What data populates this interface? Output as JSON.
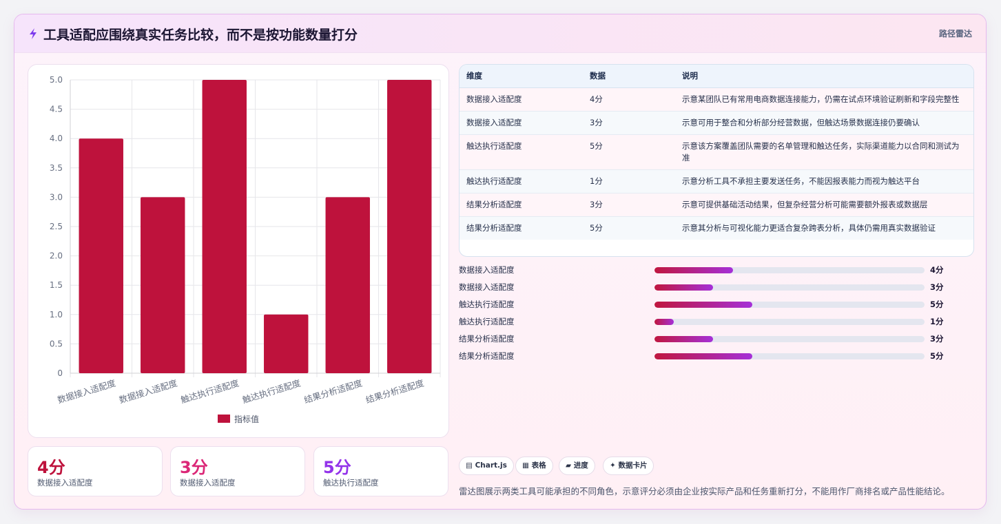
{
  "header": {
    "title": "工具适配应围绕真实任务比较，而不是按功能数量打分",
    "tag": "路径雷达"
  },
  "chart_data": {
    "type": "bar",
    "categories": [
      "数据接入适配度",
      "数据接入适配度",
      "触达执行适配度",
      "触达执行适配度",
      "结果分析适配度",
      "结果分析适配度"
    ],
    "series": [
      {
        "name": "指标值",
        "values": [
          4,
          3,
          5,
          1,
          3,
          5
        ],
        "color": "#be123c"
      }
    ],
    "ylim": [
      0,
      5
    ],
    "yticks": [
      "0",
      "0.5",
      "1.0",
      "1.5",
      "2.0",
      "2.5",
      "3.0",
      "3.5",
      "4.0",
      "4.5",
      "5.0"
    ],
    "grid": true,
    "legend": "bottom"
  },
  "stats": [
    {
      "value": "4分",
      "label": "数据接入适配度",
      "color": "#be123c"
    },
    {
      "value": "3分",
      "label": "数据接入适配度",
      "color": "#db2777"
    },
    {
      "value": "5分",
      "label": "触达执行适配度",
      "color": "#9333ea"
    }
  ],
  "table": {
    "headers": [
      "维度",
      "数据",
      "说明"
    ],
    "rows": [
      {
        "dim": "数据接入适配度",
        "score": "4分",
        "note": "示意某团队已有常用电商数据连接能力，仍需在试点环境验证刷新和字段完整性"
      },
      {
        "dim": "数据接入适配度",
        "score": "3分",
        "note": "示意可用于整合和分析部分经营数据，但触达场景数据连接仍要确认"
      },
      {
        "dim": "触达执行适配度",
        "score": "5分",
        "note": "示意该方案覆盖团队需要的名单管理和触达任务，实际渠道能力以合同和测试为准"
      },
      {
        "dim": "触达执行适配度",
        "score": "1分",
        "note": "示意分析工具不承担主要发送任务，不能因报表能力而视为触达平台"
      },
      {
        "dim": "结果分析适配度",
        "score": "3分",
        "note": "示意可提供基础活动结果，但复杂经营分析可能需要额外报表或数据层"
      },
      {
        "dim": "结果分析适配度",
        "score": "5分",
        "note": "示意其分析与可视化能力更适合复杂跨表分析，具体仍需用真实数据验证"
      }
    ]
  },
  "progress": [
    {
      "label": "数据接入适配度",
      "value": 4,
      "max": 5,
      "text": "4分"
    },
    {
      "label": "数据接入适配度",
      "value": 3,
      "max": 5,
      "text": "3分"
    },
    {
      "label": "触达执行适配度",
      "value": 5,
      "max": 5,
      "text": "5分"
    },
    {
      "label": "触达执行适配度",
      "value": 1,
      "max": 5,
      "text": "1分"
    },
    {
      "label": "结果分析适配度",
      "value": 3,
      "max": 5,
      "text": "3分"
    },
    {
      "label": "结果分析适配度",
      "value": 5,
      "max": 5,
      "text": "5分"
    }
  ],
  "chips": [
    {
      "icon": "chart-icon",
      "label": "Chart.js"
    },
    {
      "icon": "table-icon",
      "label": "表格"
    },
    {
      "icon": "progress-icon",
      "label": "进度"
    },
    {
      "icon": "sparkle-icon",
      "label": "数据卡片"
    }
  ],
  "footnote": "雷达图展示两类工具可能承担的不同角色，示意评分必须由企业按实际产品和任务重新打分，不能用作厂商排名或产品性能结论。"
}
